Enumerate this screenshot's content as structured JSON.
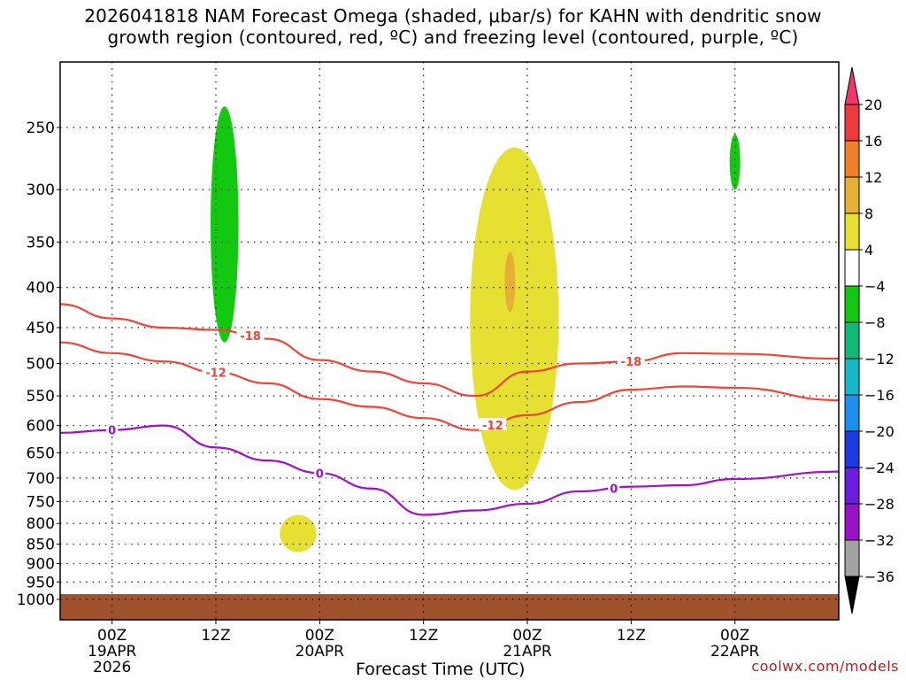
{
  "title": {
    "line1": "2026041818 NAM Forecast Omega (shaded, μbar/s) for KAHN with dendritic snow",
    "line2": "growth region (contoured, red, ºC) and freezing level (contoured, purple, ºC)"
  },
  "credit": "coolwx.com/models",
  "chart_data": {
    "type": "heatmap",
    "subtype": "time-height cross section",
    "xlabel": "Forecast Time (UTC)",
    "ylabel": "",
    "x_range": [
      "2026-04-18 18Z",
      "2026-04-22 12Z"
    ],
    "y_scale": "log-pressure",
    "y_range_hpa": [
      1000,
      200
    ],
    "y_ticks": [
      "250",
      "300",
      "350",
      "400",
      "450",
      "500",
      "550",
      "600",
      "650",
      "700",
      "750",
      "800",
      "850",
      "900",
      "950",
      "1000"
    ],
    "x_ticks": [
      {
        "label": [
          "00Z",
          "19APR",
          "2026"
        ],
        "time": "2026-04-19 00Z"
      },
      {
        "label": [
          "12Z"
        ],
        "time": "2026-04-19 12Z"
      },
      {
        "label": [
          "00Z",
          "20APR"
        ],
        "time": "2026-04-20 00Z"
      },
      {
        "label": [
          "12Z"
        ],
        "time": "2026-04-20 12Z"
      },
      {
        "label": [
          "00Z",
          "21APR"
        ],
        "time": "2026-04-21 00Z"
      },
      {
        "label": [
          "12Z"
        ],
        "time": "2026-04-21 12Z"
      },
      {
        "label": [
          "00Z",
          "22APR"
        ],
        "time": "2026-04-22 00Z"
      }
    ],
    "grid": "dotted",
    "colorbar": {
      "position": "right",
      "labels": [
        "20",
        "16",
        "12",
        "8",
        "4",
        "−4",
        "−8",
        "−12",
        "−16",
        "−20",
        "−24",
        "−28",
        "−32",
        "−36"
      ],
      "colors": [
        "#f0366a",
        "#ee3a3a",
        "#f07f2a",
        "#e6b035",
        "#e6e032",
        "#ffffff",
        "#12c90f",
        "#12b878",
        "#17b6c8",
        "#1a8ff0",
        "#1a3be0",
        "#6a1de0",
        "#9a12c8",
        "#a3a3a3",
        "#000000"
      ]
    },
    "contours": [
      {
        "label": "-18",
        "color": "#f0433a",
        "label_time": [
          "2026-04-19 16Z",
          "2026-04-21 12Z"
        ],
        "points": [
          [
            "2026-04-18 18Z",
            420
          ],
          [
            "2026-04-19 00Z",
            438
          ],
          [
            "2026-04-19 06Z",
            450
          ],
          [
            "2026-04-19 12Z",
            453
          ],
          [
            "2026-04-19 18Z",
            465
          ],
          [
            "2026-04-20 00Z",
            495
          ],
          [
            "2026-04-20 06Z",
            512
          ],
          [
            "2026-04-20 12Z",
            530
          ],
          [
            "2026-04-20 18Z",
            550
          ],
          [
            "2026-04-21 00Z",
            512
          ],
          [
            "2026-04-21 06Z",
            500
          ],
          [
            "2026-04-21 12Z",
            497
          ],
          [
            "2026-04-21 18Z",
            485
          ],
          [
            "2026-04-22 00Z",
            486
          ],
          [
            "2026-04-22 12Z",
            493
          ]
        ]
      },
      {
        "label": "-12",
        "color": "#f0433a",
        "label_time": [
          "2026-04-19 12Z",
          "2026-04-20 20Z"
        ],
        "points": [
          [
            "2026-04-18 18Z",
            470
          ],
          [
            "2026-04-19 00Z",
            485
          ],
          [
            "2026-04-19 06Z",
            497
          ],
          [
            "2026-04-19 12Z",
            513
          ],
          [
            "2026-04-19 18Z",
            530
          ],
          [
            "2026-04-20 00Z",
            555
          ],
          [
            "2026-04-20 06Z",
            568
          ],
          [
            "2026-04-20 12Z",
            587
          ],
          [
            "2026-04-20 18Z",
            608
          ],
          [
            "2026-04-21 00Z",
            582
          ],
          [
            "2026-04-21 06Z",
            560
          ],
          [
            "2026-04-21 12Z",
            540
          ],
          [
            "2026-04-21 18Z",
            535
          ],
          [
            "2026-04-22 00Z",
            537
          ],
          [
            "2026-04-22 12Z",
            557
          ]
        ]
      },
      {
        "label": "0",
        "color": "#a010c8",
        "label_time": [
          "2026-04-19 00Z",
          "2026-04-20 00Z",
          "2026-04-21 10Z"
        ],
        "points": [
          [
            "2026-04-18 18Z",
            613
          ],
          [
            "2026-04-19 00Z",
            608
          ],
          [
            "2026-04-19 06Z",
            600
          ],
          [
            "2026-04-19 12Z",
            640
          ],
          [
            "2026-04-19 18Z",
            665
          ],
          [
            "2026-04-20 00Z",
            690
          ],
          [
            "2026-04-20 06Z",
            722
          ],
          [
            "2026-04-20 12Z",
            780
          ],
          [
            "2026-04-20 18Z",
            770
          ],
          [
            "2026-04-21 00Z",
            755
          ],
          [
            "2026-04-21 06Z",
            728
          ],
          [
            "2026-04-21 12Z",
            718
          ],
          [
            "2026-04-21 18Z",
            715
          ],
          [
            "2026-04-22 00Z",
            702
          ],
          [
            "2026-04-22 12Z",
            687
          ]
        ]
      }
    ],
    "shaded_regions": [
      {
        "color": "#12c90f",
        "range": "-8 to -4",
        "time": [
          "2026-04-19 12Z",
          "2026-04-19 14Z"
        ],
        "p_hpa": [
          470,
          235
        ]
      },
      {
        "color": "#e6e032",
        "range": "4 to 8",
        "time": [
          "2026-04-20 18Z",
          "2026-04-21 03Z"
        ],
        "p_hpa": [
          725,
          265
        ]
      },
      {
        "color": "#e6b035",
        "range": "8 to 12",
        "time": [
          "2026-04-20 22Z",
          "2026-04-20 22Z"
        ],
        "p_hpa": [
          430,
          360
        ]
      },
      {
        "color": "#12c90f",
        "range": "-8 to -4",
        "time": [
          "2026-04-22 00Z",
          "2026-04-22 00Z"
        ],
        "p_hpa": [
          300,
          255
        ]
      },
      {
        "color": "#e6e032",
        "range": "4 to 8",
        "time": [
          "2026-04-19 20Z",
          "2026-04-19 23Z"
        ],
        "p_hpa": [
          870,
          780
        ]
      }
    ],
    "ground": {
      "color": "#a0522d",
      "p_hpa": [
        1000,
        1030
      ]
    }
  }
}
